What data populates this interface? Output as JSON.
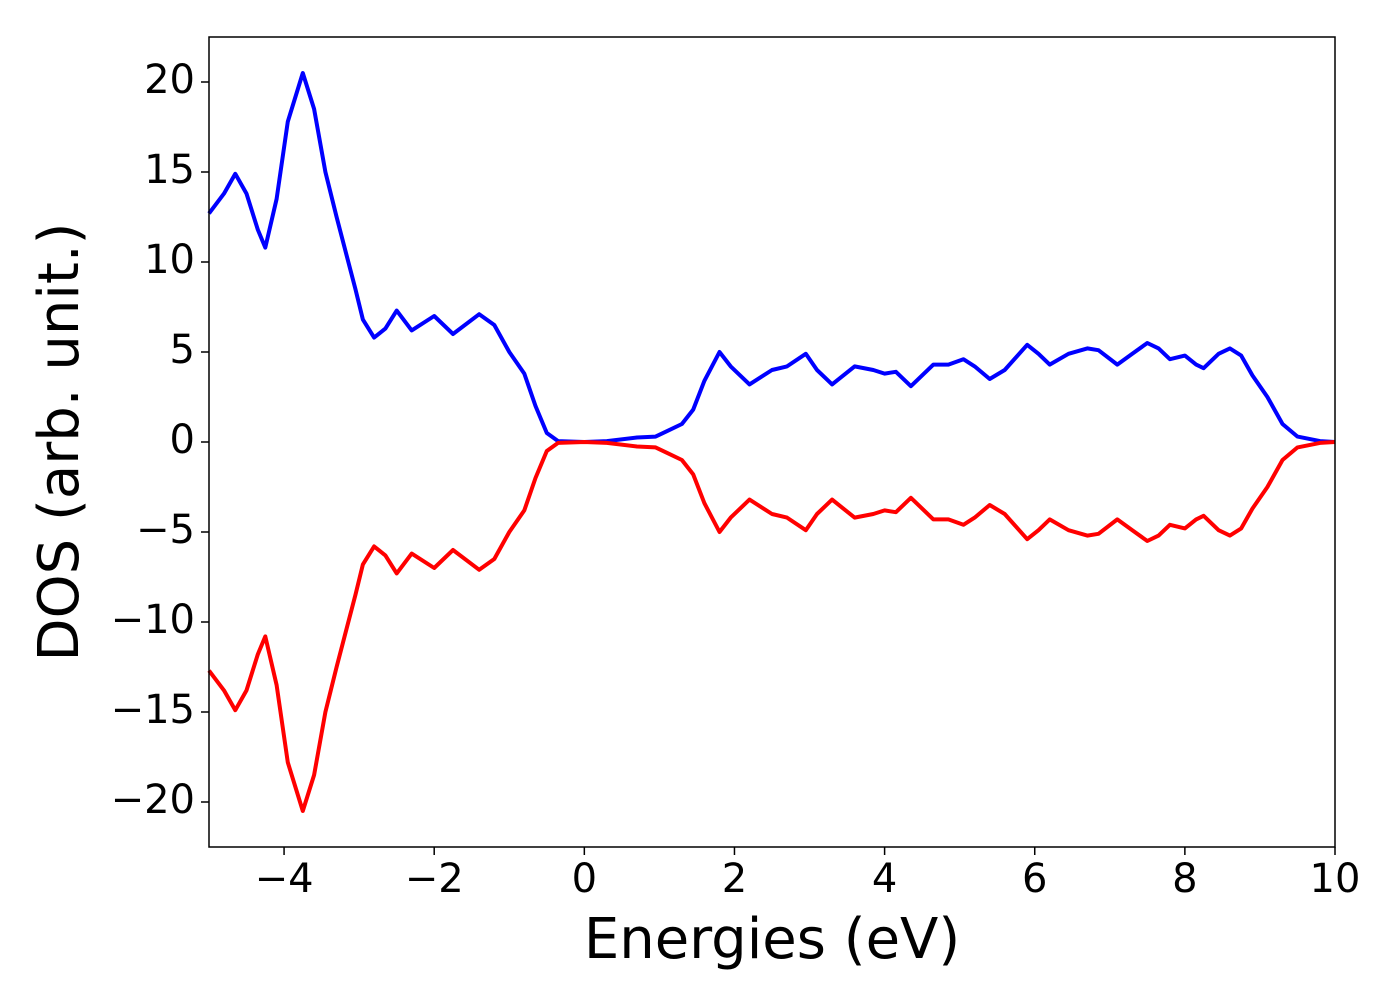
{
  "chart_data": {
    "type": "line",
    "xlabel": "Energies (eV)",
    "ylabel": "DOS (arb. unit.)",
    "x": [
      -5,
      -4.8,
      -4.65,
      -4.5,
      -4.35,
      -4.25,
      -4.1,
      -3.95,
      -3.75,
      -3.6,
      -3.45,
      -3.3,
      -3.2,
      -3.05,
      -2.95,
      -2.8,
      -2.65,
      -2.5,
      -2.3,
      -2.0,
      -1.75,
      -1.4,
      -1.2,
      -1.0,
      -0.8,
      -0.65,
      -0.5,
      -0.35,
      0,
      0.3,
      0.7,
      0.95,
      1.1,
      1.3,
      1.45,
      1.6,
      1.8,
      1.95,
      2.2,
      2.5,
      2.7,
      2.95,
      3.1,
      3.3,
      3.6,
      3.85,
      4.0,
      4.15,
      4.35,
      4.65,
      4.85,
      5.05,
      5.2,
      5.4,
      5.6,
      5.9,
      6.05,
      6.2,
      6.45,
      6.7,
      6.85,
      7.1,
      7.3,
      7.5,
      7.65,
      7.8,
      8.0,
      8.15,
      8.25,
      8.45,
      8.6,
      8.75,
      8.9,
      9.1,
      9.3,
      9.5,
      9.8,
      10
    ],
    "series": [
      {
        "color": "#0000ff",
        "values": [
          12.7,
          13.8,
          14.9,
          13.8,
          11.8,
          10.8,
          13.5,
          17.8,
          20.5,
          18.5,
          15,
          12.5,
          10.9,
          8.5,
          6.8,
          5.8,
          6.3,
          7.3,
          6.2,
          7.0,
          6.0,
          7.1,
          6.5,
          5.0,
          3.8,
          2.0,
          0.5,
          0.05,
          0,
          0.05,
          0.25,
          0.3,
          0.6,
          1.0,
          1.8,
          3.4,
          5.0,
          4.2,
          3.2,
          4.0,
          4.2,
          4.9,
          4.0,
          3.2,
          4.2,
          4.0,
          3.8,
          3.9,
          3.1,
          4.3,
          4.3,
          4.6,
          4.2,
          3.5,
          4.0,
          5.4,
          4.9,
          4.3,
          4.9,
          5.2,
          5.1,
          4.3,
          4.9,
          5.5,
          5.2,
          4.6,
          4.8,
          4.3,
          4.1,
          4.9,
          5.2,
          4.8,
          3.7,
          2.5,
          1.0,
          0.3,
          0.05,
          0
        ]
      },
      {
        "color": "#ff0000",
        "values": [
          -12.7,
          -13.8,
          -14.9,
          -13.8,
          -11.8,
          -10.8,
          -13.5,
          -17.8,
          -20.5,
          -18.5,
          -15,
          -12.5,
          -10.9,
          -8.5,
          -6.8,
          -5.8,
          -6.3,
          -7.3,
          -6.2,
          -7.0,
          -6.0,
          -7.1,
          -6.5,
          -5.0,
          -3.8,
          -2.0,
          -0.5,
          -0.05,
          0,
          -0.05,
          -0.25,
          -0.3,
          -0.6,
          -1.0,
          -1.8,
          -3.4,
          -5.0,
          -4.2,
          -3.2,
          -4.0,
          -4.2,
          -4.9,
          -4.0,
          -3.2,
          -4.2,
          -4.0,
          -3.8,
          -3.9,
          -3.1,
          -4.3,
          -4.3,
          -4.6,
          -4.2,
          -3.5,
          -4.0,
          -5.4,
          -4.9,
          -4.3,
          -4.9,
          -5.2,
          -5.1,
          -4.3,
          -4.9,
          -5.5,
          -5.2,
          -4.6,
          -4.8,
          -4.3,
          -4.1,
          -4.9,
          -5.2,
          -4.8,
          -3.7,
          -2.5,
          -1.0,
          -0.3,
          -0.05,
          0
        ]
      }
    ],
    "xlim": [
      -5,
      10
    ],
    "xticks": [
      {
        "value": -4,
        "label": "−4"
      },
      {
        "value": -2,
        "label": "−2"
      },
      0,
      2,
      4,
      6,
      8,
      10
    ],
    "ylim": [
      -22.5,
      22.5
    ],
    "yticks": [
      {
        "value": -20,
        "label": "−20"
      },
      {
        "value": -15,
        "label": "−15"
      },
      {
        "value": -10,
        "label": "−10"
      },
      {
        "value": -5,
        "label": "−5"
      },
      0,
      5,
      10,
      15,
      20
    ]
  }
}
